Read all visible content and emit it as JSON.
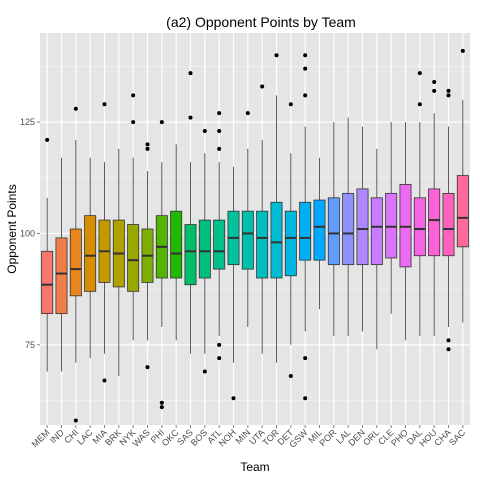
{
  "chart_data": {
    "type": "boxplot",
    "title": "(a2) Opponent Points by Team",
    "xlabel": "Team",
    "ylabel": "Opponent Points",
    "ylim": [
      57,
      145
    ],
    "yticks": [
      75,
      100,
      125
    ],
    "grid": true,
    "legend": "none",
    "panel_background": "#e5e5e5",
    "grid_color": "#ffffff",
    "median_color": "#333333",
    "categories": [
      "MEM",
      "IND",
      "CHI",
      "LAC",
      "MIA",
      "BRK",
      "NYK",
      "WAS",
      "PHI",
      "OKC",
      "SAS",
      "BOS",
      "ATL",
      "NOH",
      "MIN",
      "UTA",
      "TOR",
      "DET",
      "GSW",
      "MIL",
      "POR",
      "LAL",
      "DEN",
      "ORL",
      "CLE",
      "PHO",
      "DAL",
      "HOU",
      "CHA",
      "SAC"
    ],
    "colors": [
      "#f8766d",
      "#f17d48",
      "#e7861c",
      "#d78e00",
      "#c49a00",
      "#b0a100",
      "#99a800",
      "#7dae00",
      "#55b400",
      "#20bb00",
      "#00be6c",
      "#00bf7d",
      "#00c08b",
      "#00c19c",
      "#00c0ad",
      "#00bec0",
      "#00bbd2",
      "#00b6e0",
      "#00b0f0",
      "#00a8ff",
      "#619cff",
      "#8f91ff",
      "#ad88ff",
      "#c77cff",
      "#db72fb",
      "#eb6af1",
      "#f564e3",
      "#fc61d5",
      "#ff62bc",
      "#ff6a98"
    ],
    "boxes": [
      {
        "min": 69,
        "q1": 82,
        "median": 88.5,
        "q3": 96,
        "max": 108,
        "outliers": [
          121
        ]
      },
      {
        "min": 69,
        "q1": 82,
        "median": 91,
        "q3": 99,
        "max": 117,
        "outliers": []
      },
      {
        "min": 71,
        "q1": 86,
        "median": 92,
        "q3": 101,
        "max": 121,
        "outliers": [
          58,
          128
        ]
      },
      {
        "min": 72,
        "q1": 87,
        "median": 95,
        "q3": 104,
        "max": 117,
        "outliers": []
      },
      {
        "min": 73,
        "q1": 89,
        "median": 96,
        "q3": 103,
        "max": 116,
        "outliers": [
          67,
          129
        ]
      },
      {
        "min": 68,
        "q1": 88,
        "median": 95.5,
        "q3": 103,
        "max": 119,
        "outliers": []
      },
      {
        "min": 76,
        "q1": 87,
        "median": 94,
        "q3": 102,
        "max": 117,
        "outliers": [
          125,
          131
        ]
      },
      {
        "min": 76,
        "q1": 89,
        "median": 95,
        "q3": 101,
        "max": 114,
        "outliers": [
          70,
          119,
          120
        ]
      },
      {
        "min": 79,
        "q1": 90,
        "median": 97,
        "q3": 104,
        "max": 116,
        "outliers": [
          61,
          62,
          125
        ]
      },
      {
        "min": 76,
        "q1": 90,
        "median": 95.5,
        "q3": 105,
        "max": 120,
        "outliers": []
      },
      {
        "min": 73,
        "q1": 88.5,
        "median": 96,
        "q3": 102,
        "max": 116,
        "outliers": [
          126,
          136
        ]
      },
      {
        "min": 73,
        "q1": 90,
        "median": 96,
        "q3": 103,
        "max": 118,
        "outliers": [
          69,
          123
        ]
      },
      {
        "min": 77,
        "q1": 92,
        "median": 96,
        "q3": 103,
        "max": 116,
        "outliers": [
          72,
          75,
          119,
          123,
          127
        ]
      },
      {
        "min": 71,
        "q1": 93,
        "median": 99,
        "q3": 105,
        "max": 115,
        "outliers": [
          63
        ]
      },
      {
        "min": 79,
        "q1": 92,
        "median": 100,
        "q3": 105,
        "max": 119,
        "outliers": [
          127
        ]
      },
      {
        "min": 73,
        "q1": 90,
        "median": 99,
        "q3": 105,
        "max": 121,
        "outliers": [
          133
        ]
      },
      {
        "min": 71,
        "q1": 90,
        "median": 98,
        "q3": 107,
        "max": 131,
        "outliers": [
          140
        ]
      },
      {
        "min": 75,
        "q1": 90.5,
        "median": 99,
        "q3": 105,
        "max": 118,
        "outliers": [
          68,
          129
        ]
      },
      {
        "min": 78,
        "q1": 94,
        "median": 99,
        "q3": 107,
        "max": 124,
        "outliers": [
          63,
          72,
          131,
          137,
          140
        ]
      },
      {
        "min": 83,
        "q1": 94,
        "median": 101.5,
        "q3": 107.5,
        "max": 117,
        "outliers": []
      },
      {
        "min": 77,
        "q1": 93,
        "median": 100,
        "q3": 108,
        "max": 125,
        "outliers": []
      },
      {
        "min": 77,
        "q1": 93,
        "median": 100,
        "q3": 109,
        "max": 126,
        "outliers": []
      },
      {
        "min": 78,
        "q1": 93,
        "median": 101,
        "q3": 110,
        "max": 124,
        "outliers": []
      },
      {
        "min": 74,
        "q1": 93,
        "median": 101.5,
        "q3": 108,
        "max": 119,
        "outliers": []
      },
      {
        "min": 82,
        "q1": 94.5,
        "median": 101.5,
        "q3": 109,
        "max": 125,
        "outliers": []
      },
      {
        "min": 76,
        "q1": 92.5,
        "median": 101.5,
        "q3": 111,
        "max": 125,
        "outliers": []
      },
      {
        "min": 77,
        "q1": 95,
        "median": 101,
        "q3": 108,
        "max": 125,
        "outliers": [
          129,
          136
        ]
      },
      {
        "min": 77,
        "q1": 95,
        "median": 103,
        "q3": 110,
        "max": 127,
        "outliers": [
          132,
          134
        ]
      },
      {
        "min": 79,
        "q1": 95,
        "median": 101,
        "q3": 109,
        "max": 124,
        "outliers": [
          74,
          76,
          131,
          132
        ]
      },
      {
        "min": 80,
        "q1": 97,
        "median": 103.5,
        "q3": 113,
        "max": 130,
        "outliers": [
          141
        ]
      }
    ]
  }
}
